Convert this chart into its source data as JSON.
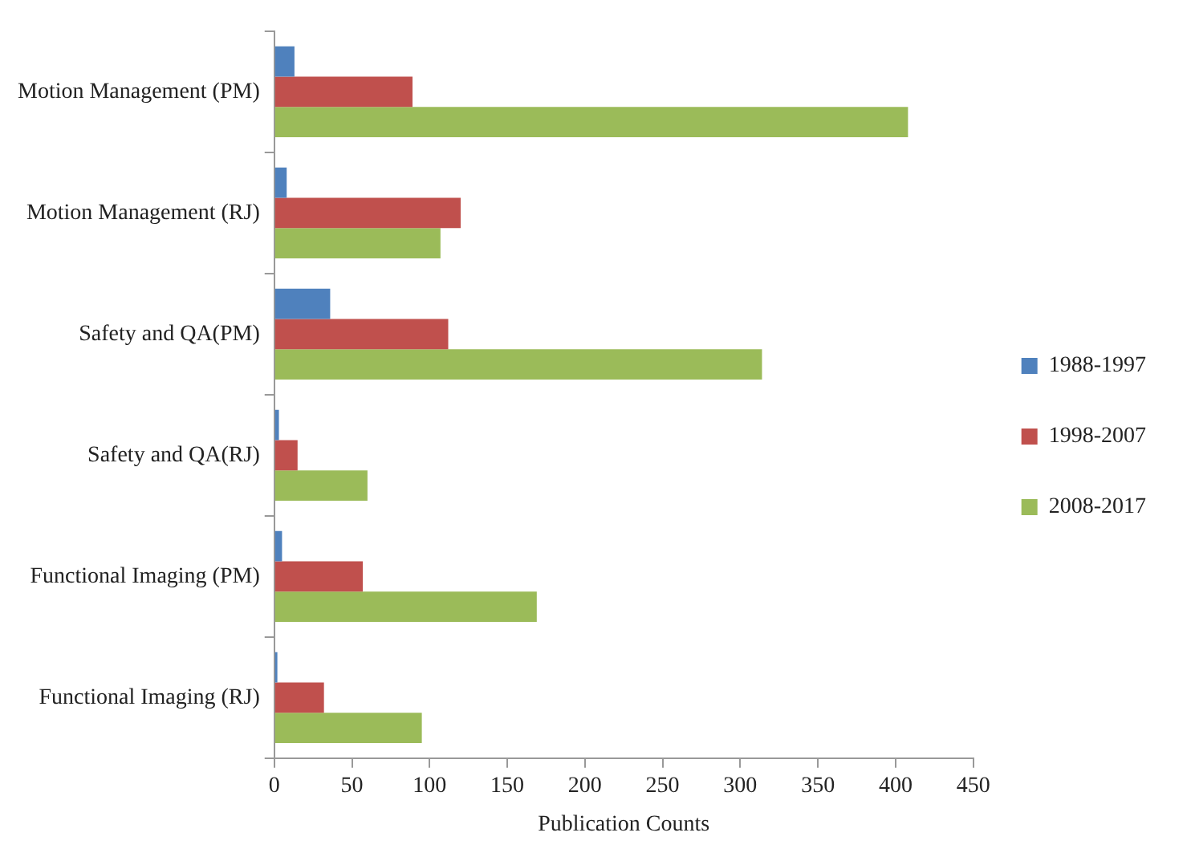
{
  "chart_data": {
    "type": "bar",
    "orientation": "horizontal",
    "xlabel": "Publication Counts",
    "categories": [
      "Motion Management (PM)",
      "Motion Management (RJ)",
      "Safety and QA(PM)",
      "Safety and QA(RJ)",
      "Functional Imaging (PM)",
      "Functional Imaging (RJ)"
    ],
    "series": [
      {
        "name": "1988-1997",
        "color": "#4f81bd",
        "values": [
          13,
          8,
          36,
          3,
          5,
          2
        ]
      },
      {
        "name": "1998-2007",
        "color": "#c0504d",
        "values": [
          89,
          120,
          112,
          15,
          57,
          32
        ]
      },
      {
        "name": "2008-2017",
        "color": "#9bbb59",
        "values": [
          408,
          107,
          314,
          60,
          169,
          95
        ]
      }
    ],
    "xlim": [
      0,
      450
    ],
    "xticks": [
      0,
      50,
      100,
      150,
      200,
      250,
      300,
      350,
      400,
      450
    ],
    "grid": false,
    "legend": "right"
  }
}
